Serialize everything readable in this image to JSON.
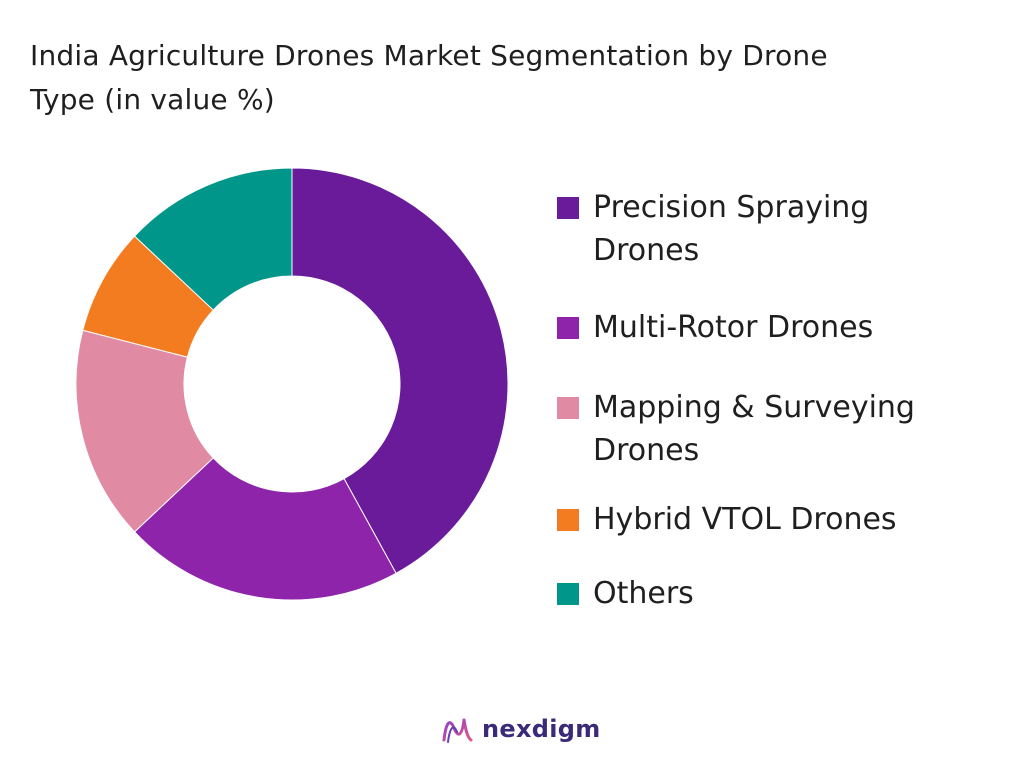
{
  "chart_data": {
    "type": "pie",
    "subtype": "donut",
    "title": "India Agriculture Drones Market Segmentation by Drone Type (in value %)",
    "categories": [
      "Precision Spraying Drones",
      "Multi-Rotor Drones",
      "Mapping & Surveying Drones",
      "Hybrid VTOL Drones",
      "Others"
    ],
    "values": [
      42,
      21,
      16,
      8,
      13
    ],
    "colors": [
      "#6a1b9a",
      "#8e24aa",
      "#e08aa4",
      "#f47c20",
      "#00968a"
    ],
    "legend_position": "right"
  },
  "brand": {
    "name": "nexdigm",
    "icon": "nexdigm-logo-icon"
  }
}
